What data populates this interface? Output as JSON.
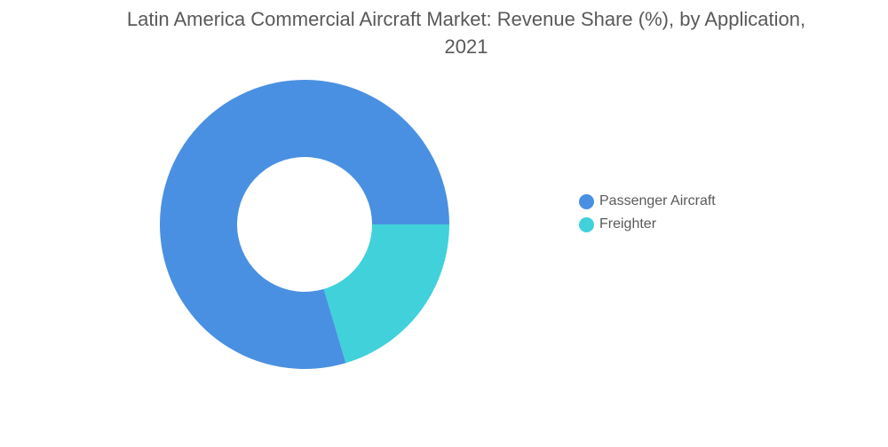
{
  "chart_data": {
    "type": "pie",
    "variant": "donut",
    "title_lines": [
      "Latin America Commercial Aircraft Market: Revenue Share (%), by Application,",
      "2021"
    ],
    "series": [
      {
        "name": "Passenger Aircraft",
        "value": 79.6,
        "color": "#4a90e2"
      },
      {
        "name": "Freighter",
        "value": 20.4,
        "color": "#40d1da"
      }
    ],
    "legend_position": "right"
  }
}
